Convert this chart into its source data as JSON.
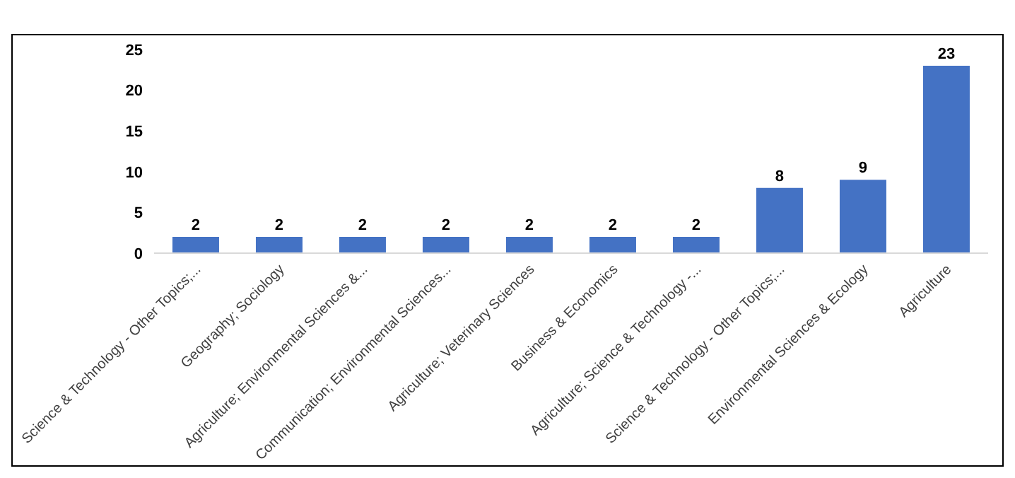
{
  "chart_data": {
    "type": "bar",
    "categories": [
      "Science & Technology - Other Topics;...",
      "Geography; Sociology",
      "Agriculture; Environmental Sciences &...",
      "Communication; Environmental Sciences...",
      "Agriculture; Veterinary Sciences",
      "Business & Economics",
      "Agriculture; Science & Technology -...",
      "Science & Technology - Other Topics;...",
      "Environmental Sciences & Ecology",
      "Agriculture"
    ],
    "values": [
      2,
      2,
      2,
      2,
      2,
      2,
      2,
      8,
      9,
      23
    ],
    "color": "#4472c4",
    "ylim": [
      0,
      25
    ],
    "yticks": [
      0,
      5,
      10,
      15,
      20,
      25
    ],
    "grid": false,
    "data_labels": true
  }
}
